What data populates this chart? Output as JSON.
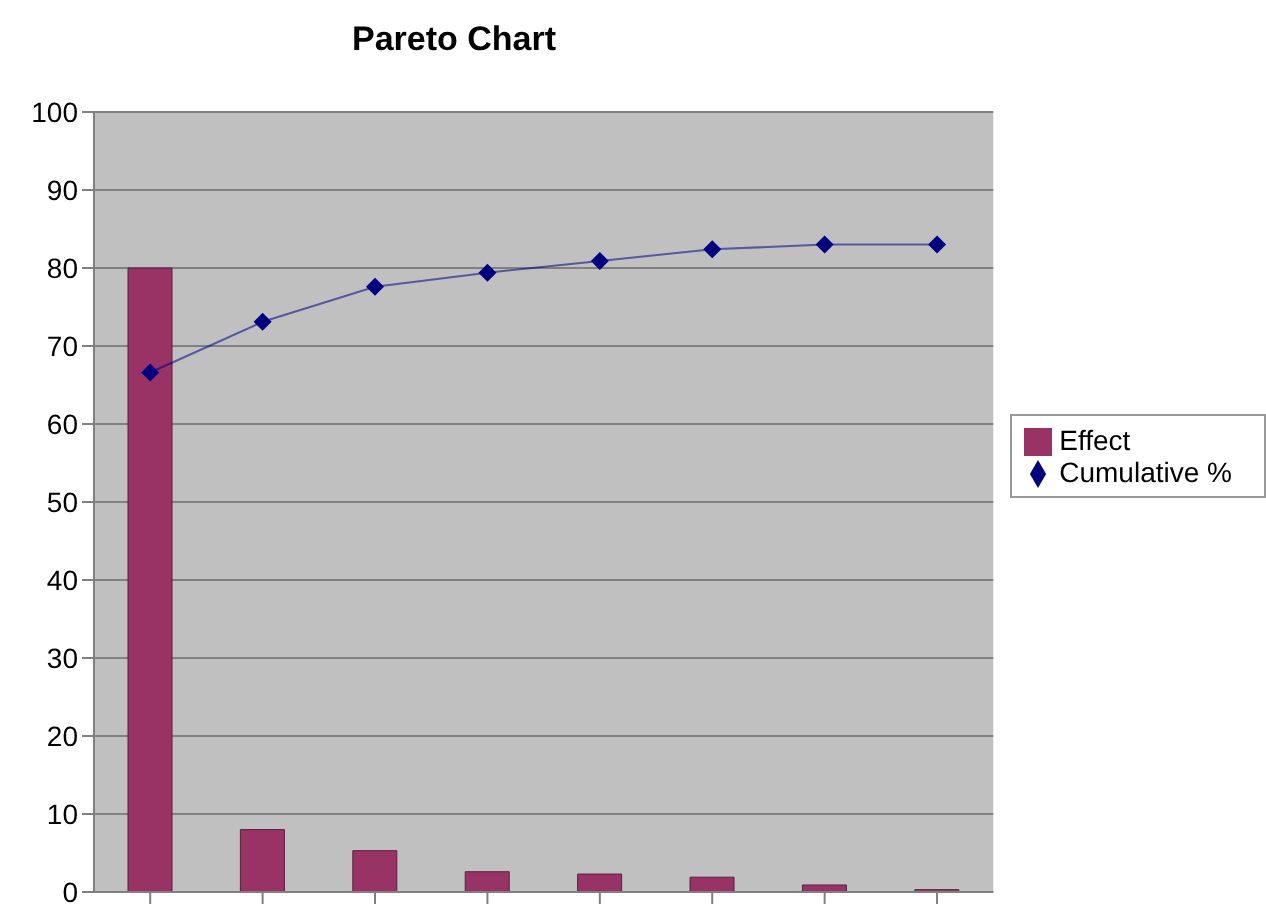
{
  "chart_data": {
    "type": "bar",
    "title": "Pareto Chart",
    "categories": [
      null,
      null,
      null,
      null,
      null,
      null,
      null,
      null
    ],
    "series": [
      {
        "name": "Effect",
        "color": "#993366",
        "values": [
          80,
          8.0,
          5.3,
          2.6,
          2.3,
          1.9,
          0.9,
          0.3
        ]
      },
      {
        "name": "Cumulative %",
        "type": "line",
        "color": "#000080",
        "marker": "diamond",
        "values": [
          66.6,
          73.1,
          77.6,
          79.4,
          80.9,
          82.4,
          83.0,
          83.0
        ]
      }
    ],
    "ylim": [
      0,
      100
    ],
    "yticks": [
      0,
      10,
      20,
      30,
      40,
      50,
      60,
      70,
      80,
      90,
      100
    ],
    "grid": "y",
    "legend": "right"
  }
}
